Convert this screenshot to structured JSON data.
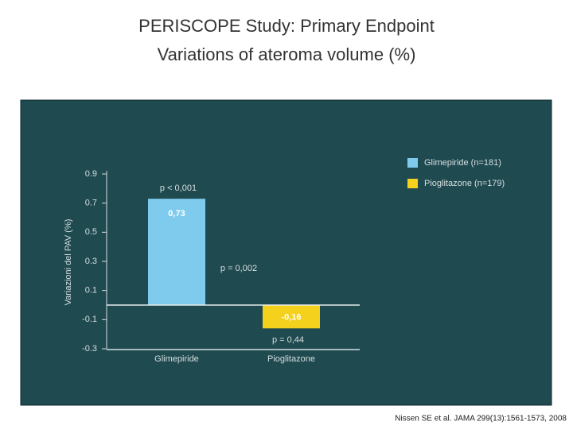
{
  "title": [
    "PERISCOPE Study: Primary Endpoint",
    "Variations of ateroma volume (%)"
  ],
  "citation": "Nissen SE et al. JAMA 299(13):1561-1573, 2008",
  "chart_data": {
    "type": "bar",
    "y_label": "Variazioni del PAV (%)",
    "categories": [
      "Glimepiride",
      "Pioglitazone"
    ],
    "series": [
      {
        "name": "Glimepiride (n=181)",
        "color": "#7fcbee",
        "values": [
          0.73,
          null
        ],
        "value_labels": [
          "0,73",
          null
        ]
      },
      {
        "name": "Pioglitazone (n=179)",
        "color": "#f3d11c",
        "values": [
          null,
          -0.16
        ],
        "value_labels": [
          null,
          "-0,16"
        ]
      }
    ],
    "annotations": [
      "p < 0,001",
      "p = 0,002",
      "p = 0,44"
    ],
    "ylim": [
      -0.3,
      0.9
    ],
    "yticks": [
      0.9,
      0.7,
      0.5,
      0.3,
      0.1,
      -0.1,
      -0.3
    ],
    "grid": false,
    "legend": "top-right"
  }
}
